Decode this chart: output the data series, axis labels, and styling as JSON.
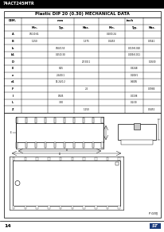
{
  "title": "Plastic DIP 20 (0.30) MECHANICAL DATA",
  "header_text": "74ACT245MTR",
  "page_num": "14",
  "bg_color": "#ffffff",
  "table_rows": [
    [
      "A",
      "0.51/0.61",
      "",
      "",
      "0.20/0.24",
      "",
      ""
    ],
    [
      "B",
      "1.150",
      "",
      "1.375",
      "0.0453",
      "",
      "0.0541"
    ],
    [
      "b",
      "",
      "0.50/0.55",
      "",
      "",
      "0.019/0.020",
      ""
    ],
    [
      "b1",
      "",
      "0.25/0.30",
      "",
      "",
      "0.009/0.011",
      ""
    ],
    [
      "D",
      "",
      "",
      "27.0/0.1",
      "",
      "",
      "1.0630"
    ],
    [
      "E",
      "",
      "8.25",
      "",
      "",
      "0.3248",
      ""
    ],
    [
      "e",
      "",
      "2.54/0.1",
      "",
      "",
      "0.100/1",
      ""
    ],
    [
      "e1",
      "",
      "15.24/0.2",
      "",
      "",
      "0.6005",
      ""
    ],
    [
      "F",
      "",
      "",
      "2.5",
      "",
      "",
      "0.0984"
    ],
    [
      "I",
      "",
      "0.505",
      "",
      "",
      "0.0198",
      ""
    ],
    [
      "L",
      "",
      "3.30",
      "",
      "",
      "0.1/30",
      ""
    ],
    [
      "Z",
      "",
      "",
      "1.150",
      "",
      "",
      "0.0452"
    ]
  ],
  "sub_headers": [
    "Min.",
    "Typ.",
    "Max.",
    "Min.",
    "Typ.",
    "Max."
  ],
  "figure_label": "P 020J"
}
